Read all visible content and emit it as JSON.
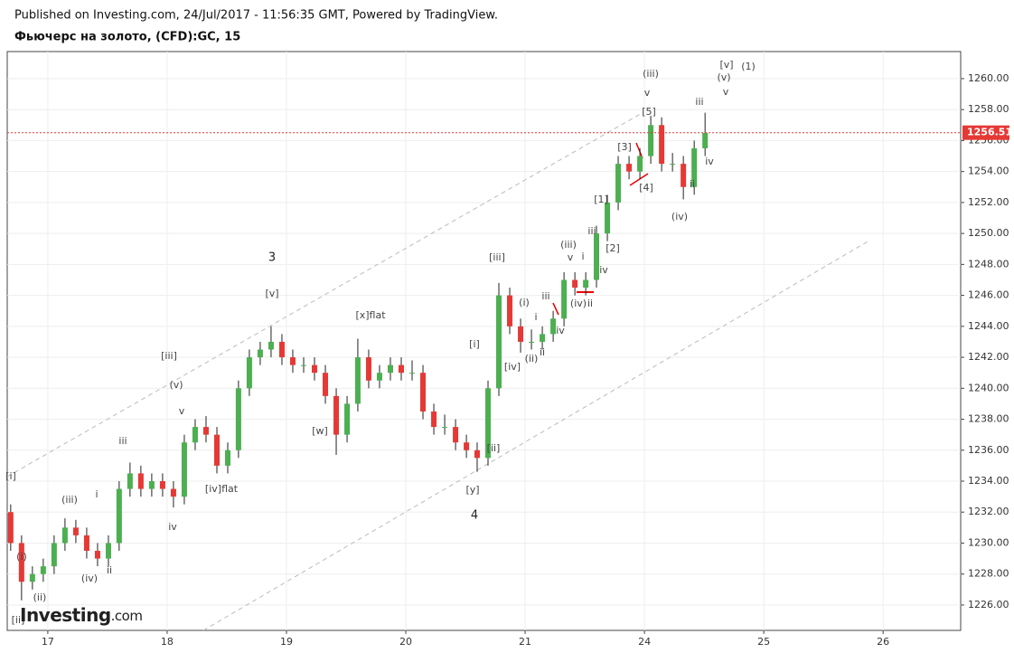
{
  "header": {
    "published": "Published on Investing.com, 24/Jul/2017 - 11:56:35 GMT, Powered by TradingView.",
    "title": "Фьючерс на золото, (CFD):GC, 15"
  },
  "logo": {
    "brand": "Investing",
    "suffix": ".com"
  },
  "chart_data": {
    "type": "candlestick",
    "up_color": "#4caf50",
    "down_color": "#e53935",
    "wick_color": "#222",
    "x": [
      -0.311,
      -0.22,
      -0.129,
      -0.038,
      0.053,
      0.144,
      0.235,
      0.326,
      0.417,
      0.508,
      0.598,
      0.689,
      0.78,
      0.871,
      0.962,
      1.053,
      1.144,
      1.235,
      1.326,
      1.417,
      1.508,
      1.598,
      1.689,
      1.78,
      1.871,
      1.962,
      2.053,
      2.144,
      2.235,
      2.326,
      2.417,
      2.508,
      2.598,
      2.689,
      2.78,
      2.871,
      2.962,
      3.053,
      3.144,
      3.235,
      3.326,
      3.417,
      3.508,
      3.598,
      3.689,
      3.78,
      3.871,
      3.962,
      4.053,
      4.144,
      4.235,
      4.326,
      4.417,
      4.508,
      4.598,
      4.689,
      4.78,
      4.871,
      4.962,
      5.053,
      5.144,
      5.235,
      5.326,
      5.417,
      5.508
    ],
    "open": [
      1232,
      1230,
      1227.5,
      1228,
      1228.5,
      1230,
      1231,
      1230.5,
      1229.5,
      1229,
      1230,
      1233.5,
      1234.5,
      1233.5,
      1234,
      1233.5,
      1233,
      1236.5,
      1237.5,
      1237,
      1235,
      1236,
      1240,
      1242,
      1242.5,
      1243,
      1242,
      1241.5,
      1241.5,
      1241,
      1239.5,
      1237,
      1239,
      1242,
      1240.5,
      1241,
      1241.5,
      1241,
      1241,
      1238.5,
      1237.5,
      1237.5,
      1236.5,
      1236,
      1235.5,
      1240,
      1246,
      1244,
      1243,
      1243,
      1243.5,
      1244.5,
      1247,
      1246.5,
      1247,
      1250,
      1252,
      1254.5,
      1254,
      1255,
      1257,
      1254.5,
      1254.5,
      1253,
      1255.5
    ],
    "high": [
      1232.5,
      1230.5,
      1228.5,
      1229,
      1230.5,
      1231.6,
      1231.5,
      1231,
      1230,
      1230.5,
      1234,
      1235.2,
      1235,
      1234.5,
      1234.5,
      1234,
      1237,
      1238,
      1238.2,
      1237.5,
      1236.5,
      1240.5,
      1242.5,
      1243,
      1244,
      1243.5,
      1242.5,
      1242,
      1242,
      1241.5,
      1240,
      1239.5,
      1243.2,
      1242.5,
      1241.5,
      1242,
      1242,
      1241.8,
      1241.5,
      1239,
      1238.3,
      1238,
      1237,
      1236.5,
      1240.5,
      1246.8,
      1246.5,
      1244.5,
      1243.8,
      1244,
      1245,
      1247.5,
      1247.5,
      1247.5,
      1250.5,
      1252.5,
      1255,
      1255,
      1255.5,
      1257.6,
      1257.5,
      1255.2,
      1255,
      1256,
      1257.8
    ],
    "low": [
      1229.5,
      1226.3,
      1227,
      1227.5,
      1228,
      1229.5,
      1230,
      1229,
      1228.5,
      1228.5,
      1229.5,
      1233,
      1233,
      1233,
      1233,
      1232.3,
      1232.5,
      1236,
      1236.5,
      1234.5,
      1234.5,
      1235.5,
      1239.5,
      1241.5,
      1242,
      1241.5,
      1241,
      1241,
      1240.5,
      1239,
      1235.7,
      1236.5,
      1238.5,
      1240,
      1240,
      1240.5,
      1240.5,
      1240.5,
      1238,
      1237,
      1237,
      1236,
      1235.5,
      1234.6,
      1235,
      1239.5,
      1243.5,
      1242.3,
      1242.5,
      1242.5,
      1243,
      1244,
      1246,
      1246,
      1246.5,
      1249.5,
      1251.5,
      1253.5,
      1253.5,
      1254.5,
      1254,
      1254,
      1252.2,
      1252.5,
      1255
    ],
    "close": [
      1230,
      1227.5,
      1228,
      1228.5,
      1230,
      1231,
      1230.5,
      1229.5,
      1229,
      1230,
      1233.5,
      1234.5,
      1233.5,
      1234,
      1233.5,
      1233,
      1236.5,
      1237.5,
      1237,
      1235,
      1236,
      1240,
      1242,
      1242.5,
      1243,
      1242,
      1241.5,
      1241.5,
      1241,
      1239.5,
      1237,
      1239,
      1242,
      1240.5,
      1241,
      1241.5,
      1241,
      1241,
      1238.5,
      1237.5,
      1237.5,
      1236.5,
      1236,
      1235.5,
      1240,
      1246,
      1244,
      1243,
      1243,
      1243.5,
      1244.5,
      1247,
      1246.5,
      1247,
      1250,
      1252,
      1254.5,
      1254,
      1255,
      1257,
      1254.5,
      1254.5,
      1253,
      1255.5,
      1256.5
    ],
    "last_price": 1256.51,
    "last_price_color": "#e53935",
    "xlim": [
      -0.34,
      7.65
    ],
    "xticks": [
      {
        "value": 0,
        "label": "17"
      },
      {
        "value": 1,
        "label": "18"
      },
      {
        "value": 2,
        "label": "19"
      },
      {
        "value": 3,
        "label": "20"
      },
      {
        "value": 4,
        "label": "21"
      },
      {
        "value": 5,
        "label": "24"
      },
      {
        "value": 6,
        "label": "25"
      },
      {
        "value": 7,
        "label": "26"
      }
    ],
    "ylim": [
      1224.36,
      1261.75
    ],
    "yticks": [
      {
        "value": 1226,
        "label": "1226.00"
      },
      {
        "value": 1228,
        "label": "1228.00"
      },
      {
        "value": 1230,
        "label": "1230.00"
      },
      {
        "value": 1232,
        "label": "1232.00"
      },
      {
        "value": 1234,
        "label": "1234.00"
      },
      {
        "value": 1236,
        "label": "1236.00"
      },
      {
        "value": 1238,
        "label": "1238.00"
      },
      {
        "value": 1240,
        "label": "1240.00"
      },
      {
        "value": 1242,
        "label": "1242.00"
      },
      {
        "value": 1244,
        "label": "1244.00"
      },
      {
        "value": 1246,
        "label": "1246.00"
      },
      {
        "value": 1248,
        "label": "1248.00"
      },
      {
        "value": 1250,
        "label": "1250.00"
      },
      {
        "value": 1252,
        "label": "1252.00"
      },
      {
        "value": 1254,
        "label": "1254.00"
      },
      {
        "value": 1256,
        "label": "1256.00"
      },
      {
        "value": 1258,
        "label": "1258.00"
      },
      {
        "value": 1260,
        "label": "1260.00"
      }
    ],
    "annotations": [
      "[i]",
      "(i)",
      "(ii)",
      "(iii)",
      "(iv)",
      "i",
      "ii",
      "iii",
      "iv",
      "v",
      "(v)",
      "[iii]",
      "[iv]flat",
      "[v]",
      "3",
      "[w]",
      "[x]flat",
      "[y]",
      "4",
      "[ii]",
      "[i]",
      "[iii]",
      "(i)",
      "[iv]",
      "i",
      "(ii)",
      "ii",
      "iii",
      "iv",
      "(iii)",
      "v",
      "(iv)",
      "ii",
      "i",
      "iii",
      "[1]",
      "[2]",
      "iv",
      "[3]",
      "[4]",
      "[5]",
      "v",
      "(iii)",
      "iv",
      "ii",
      "(iv)",
      "iii",
      "[v]",
      "(v)",
      "v",
      "(1)",
      "[ii]"
    ]
  }
}
